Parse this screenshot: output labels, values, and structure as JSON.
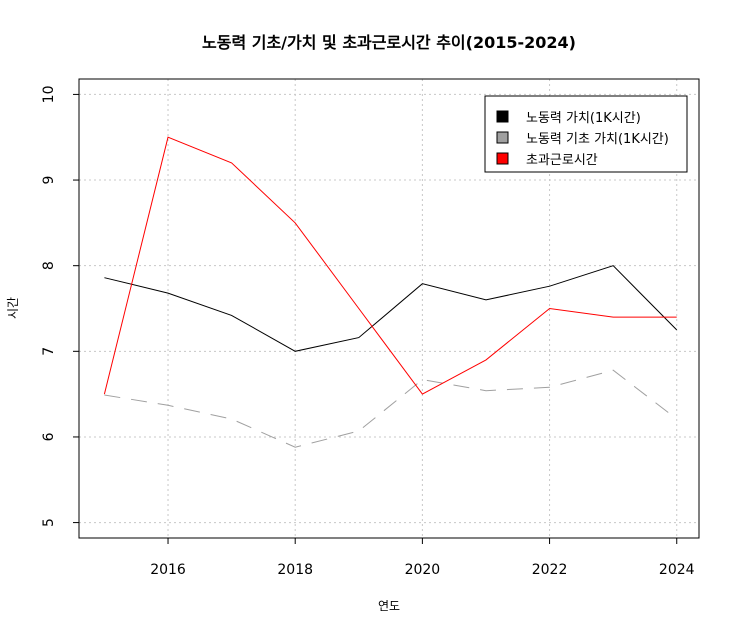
{
  "chart_data": {
    "type": "line",
    "title": "노동력 기초/가치 및 초과근로시간 추이(2015-2024)",
    "xlabel": "연도",
    "ylabel": "시간",
    "x": [
      2015,
      2016,
      2017,
      2018,
      2019,
      2020,
      2021,
      2022,
      2023,
      2024
    ],
    "xticks": [
      2016,
      2018,
      2020,
      2022,
      2024
    ],
    "yticks": [
      5,
      6,
      7,
      8,
      9,
      10
    ],
    "xlim": [
      2014.6,
      2024.35
    ],
    "ylim": [
      4.82,
      10.18
    ],
    "grid": true,
    "legend_position": "top-right",
    "series": [
      {
        "name": "노동력 가치(1K시간)",
        "color": "#000000",
        "dash": "solid",
        "values": [
          7.86,
          7.68,
          7.42,
          7.0,
          7.16,
          7.79,
          7.6,
          7.76,
          8.0,
          7.25
        ]
      },
      {
        "name": "노동력 기초 가치(1K시간)",
        "color": "#a0a0a0",
        "dash": "dashed",
        "values": [
          6.49,
          6.37,
          6.21,
          5.88,
          6.07,
          6.67,
          6.54,
          6.58,
          6.78,
          6.21
        ]
      },
      {
        "name": "초과근로시간",
        "color": "#ff0000",
        "dash": "solid",
        "values": [
          6.5,
          9.5,
          9.2,
          8.5,
          7.5,
          6.5,
          6.9,
          7.5,
          7.4,
          7.4
        ]
      }
    ]
  }
}
